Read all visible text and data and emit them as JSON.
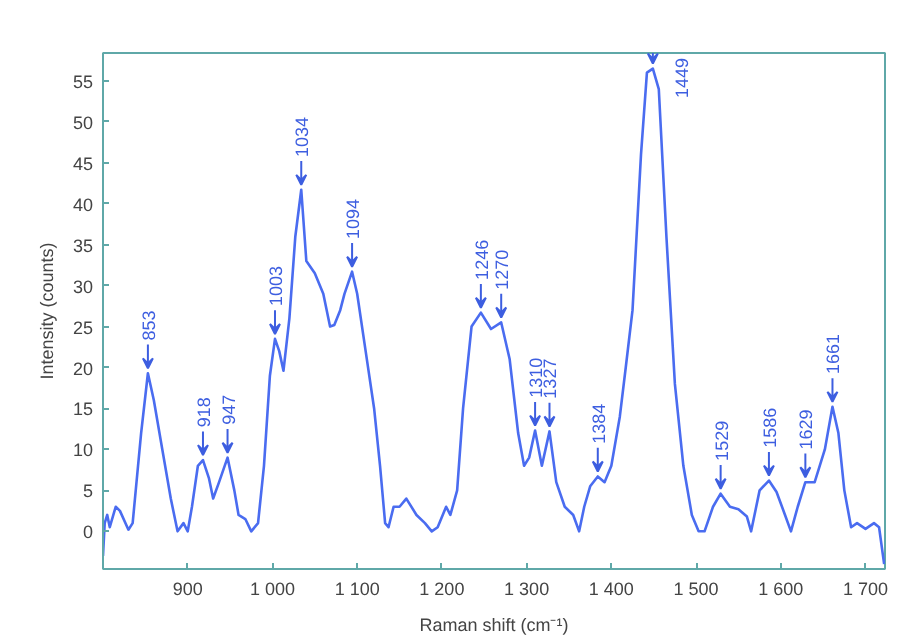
{
  "chart_data": {
    "type": "line",
    "xlabel": "Raman shift (cm⁻¹)",
    "ylabel": "Intensity (counts)",
    "xlim": [
      800,
      1723
    ],
    "ylim": [
      -4.6,
      58.4
    ],
    "xticks": [
      {
        "value": 900,
        "label": "900"
      },
      {
        "value": 1000,
        "label": "1 000"
      },
      {
        "value": 1100,
        "label": "1 100"
      },
      {
        "value": 1200,
        "label": "1 200"
      },
      {
        "value": 1300,
        "label": "1 300"
      },
      {
        "value": 1400,
        "label": "1 400"
      },
      {
        "value": 1500,
        "label": "1 500"
      },
      {
        "value": 1600,
        "label": "1 600"
      },
      {
        "value": 1700,
        "label": "1 700"
      }
    ],
    "yticks": [
      0,
      5,
      10,
      15,
      20,
      25,
      30,
      35,
      40,
      45,
      50,
      55
    ],
    "grid": false,
    "marker": "none",
    "line_style": "solid",
    "series": [
      {
        "color": "#4a6cf0",
        "x": [
          800,
          802,
          805,
          808,
          815,
          820,
          830,
          835,
          845,
          853,
          860,
          870,
          880,
          888,
          895,
          900,
          905,
          912,
          918,
          925,
          930,
          937,
          947,
          955,
          960,
          968,
          975,
          983,
          990,
          997,
          1003,
          1008,
          1013,
          1020,
          1027,
          1034,
          1040,
          1050,
          1060,
          1068,
          1073,
          1080,
          1085,
          1094,
          1100,
          1110,
          1120,
          1127,
          1133,
          1137,
          1143,
          1150,
          1158,
          1170,
          1180,
          1188,
          1195,
          1205,
          1210,
          1218,
          1225,
          1235,
          1246,
          1258,
          1270,
          1280,
          1290,
          1297,
          1303,
          1310,
          1318,
          1327,
          1335,
          1345,
          1355,
          1362,
          1368,
          1375,
          1384,
          1392,
          1400,
          1410,
          1417,
          1425,
          1435,
          1442,
          1449,
          1456,
          1465,
          1475,
          1485,
          1495,
          1503,
          1510,
          1520,
          1529,
          1540,
          1550,
          1560,
          1565,
          1575,
          1586,
          1595,
          1605,
          1612,
          1620,
          1629,
          1640,
          1652,
          1661,
          1668,
          1675,
          1683,
          1690,
          1700,
          1710,
          1716,
          1722
        ],
        "values": [
          -3,
          1,
          2,
          0.5,
          3,
          2.5,
          0.2,
          1,
          12,
          19.3,
          16,
          10,
          4,
          0,
          1,
          0,
          3,
          8,
          8.7,
          6.5,
          4,
          6,
          9,
          5,
          2,
          1.5,
          0,
          1,
          8,
          19,
          23.5,
          22,
          19.6,
          26,
          36,
          41.7,
          33,
          31.5,
          29,
          25,
          25.2,
          27,
          29,
          31.7,
          29,
          22,
          15,
          8,
          1,
          0.5,
          3,
          3,
          4,
          2,
          1,
          0,
          0.5,
          3,
          2,
          5,
          15,
          25,
          26.7,
          24.7,
          25.5,
          21,
          12,
          8,
          9,
          12.3,
          8,
          12.2,
          6,
          3,
          2,
          0,
          3,
          5.5,
          6.7,
          6,
          8,
          14,
          20,
          27,
          46,
          56,
          56.5,
          54,
          36,
          18,
          8,
          2,
          0,
          0,
          3,
          4.6,
          3,
          2.7,
          1.8,
          0,
          5,
          6.2,
          4.8,
          2,
          0,
          3,
          6,
          6,
          10,
          15.2,
          12,
          5,
          0.5,
          1,
          0.3,
          1,
          0.5,
          -4
        ]
      }
    ],
    "annotations": [
      {
        "text": "853",
        "x": 853,
        "y": 19.3
      },
      {
        "text": "918",
        "x": 918,
        "y": 8.7
      },
      {
        "text": "947",
        "x": 947,
        "y": 9
      },
      {
        "text": "1003",
        "x": 1003,
        "y": 23.5
      },
      {
        "text": "1034",
        "x": 1034,
        "y": 41.7
      },
      {
        "text": "1094",
        "x": 1094,
        "y": 31.7
      },
      {
        "text": "1246",
        "x": 1246,
        "y": 26.7
      },
      {
        "text": "1270",
        "x": 1270,
        "y": 25.5
      },
      {
        "text": "1310",
        "x": 1310,
        "y": 12.3
      },
      {
        "text": "1327",
        "x": 1327,
        "y": 12.2
      },
      {
        "text": "1384",
        "x": 1384,
        "y": 6.7
      },
      {
        "text": "1449",
        "x": 1449,
        "y": 56.5
      },
      {
        "text": "1529",
        "x": 1529,
        "y": 4.6
      },
      {
        "text": "1586",
        "x": 1586,
        "y": 6.2
      },
      {
        "text": "1629",
        "x": 1629,
        "y": 6
      },
      {
        "text": "1661",
        "x": 1661,
        "y": 15.2
      }
    ]
  }
}
